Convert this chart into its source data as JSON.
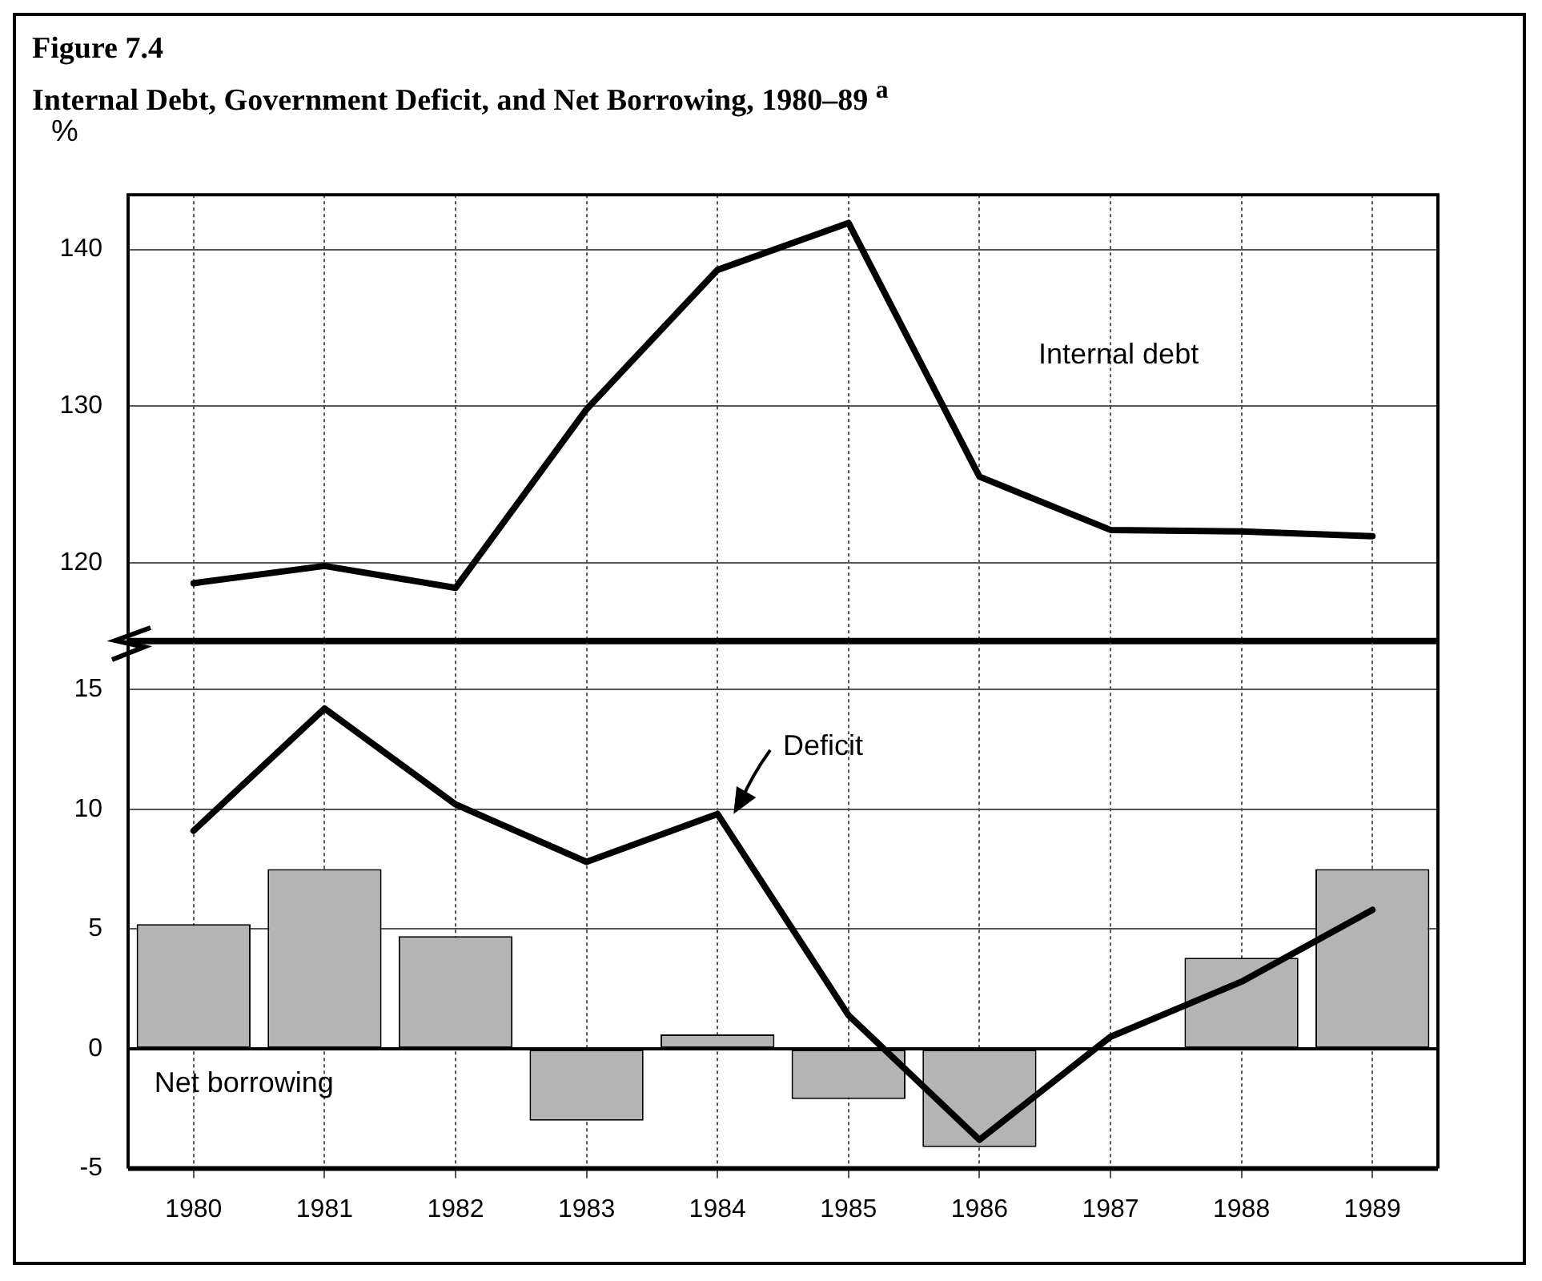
{
  "chart_data": [
    {
      "type": "line",
      "title": "Figure 7.4",
      "subtitle": "Internal Debt, Government Deficit, and Net Borrowing, 1980–89 $^{a}$",
      "ylabel": "%",
      "categories": [
        "1980",
        "1981",
        "1982",
        "1983",
        "1984",
        "1985",
        "1986",
        "1987",
        "1988",
        "1989"
      ],
      "series": [
        {
          "name": "Internal debt",
          "color": "#000000",
          "values": [
            118.7,
            119.8,
            118.4,
            129.8,
            138.7,
            141.7,
            125.5,
            122.1,
            122.0,
            121.7
          ]
        }
      ],
      "ylim": [
        115,
        143.5
      ],
      "yticks": [
        120,
        130,
        140
      ],
      "grid": true,
      "tick_labels": "y"
    },
    {
      "type": "bar",
      "categories": [
        "1980",
        "1981",
        "1982",
        "1983",
        "1984",
        "1985",
        "1986",
        "1987",
        "1988",
        "1989"
      ],
      "series": [
        {
          "name": "Net borrowing",
          "color": "#b4b4b4",
          "values": [
            5.2,
            7.5,
            4.7,
            -3.0,
            0.6,
            -2.1,
            -4.1,
            null,
            3.8,
            7.5
          ]
        },
        {
          "name": "Deficit",
          "type": "line",
          "color": "#000000",
          "values": [
            9.1,
            14.2,
            10.2,
            7.8,
            9.8,
            1.4,
            -3.8,
            0.5,
            2.8,
            5.8
          ]
        }
      ],
      "ylim": [
        -5,
        17
      ],
      "yticks": [
        -5,
        0,
        5,
        10,
        15
      ],
      "grid": true
    }
  ]
}
